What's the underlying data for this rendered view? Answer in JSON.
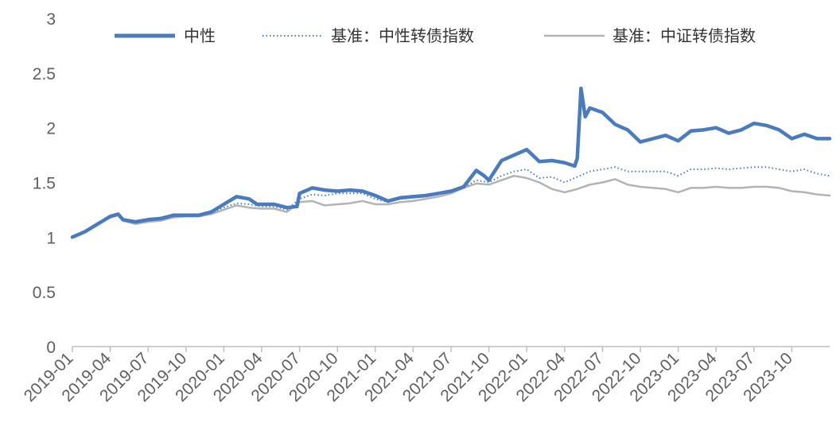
{
  "chart_data": {
    "type": "line",
    "title": "",
    "xlabel": "",
    "ylabel": "",
    "ylim": [
      0,
      3
    ],
    "y_ticks": [
      "0",
      "0.5",
      "1",
      "1.5",
      "2",
      "2.5",
      "3"
    ],
    "x_ticks": [
      "2019-01",
      "2019-04",
      "2019-07",
      "2019-10",
      "2020-01",
      "2020-04",
      "2020-07",
      "2020-10",
      "2021-01",
      "2021-04",
      "2021-07",
      "2021-10",
      "2022-01",
      "2022-04",
      "2022-07",
      "2022-10",
      "2023-01",
      "2023-04",
      "2023-07",
      "2023-10"
    ],
    "x_range": [
      "2019-01",
      "2024-01"
    ],
    "grid": false,
    "legend_position": "top",
    "colors": {
      "axis": "#bfbfbf",
      "text": "#5f5f5f"
    },
    "series": [
      {
        "name": "中性",
        "color": "#4a7bbf",
        "style": "thick-solid",
        "points": [
          [
            "2019-01",
            1.0
          ],
          [
            "2019-02",
            1.05
          ],
          [
            "2019-03",
            1.12
          ],
          [
            "2019-04",
            1.19
          ],
          [
            "2019-04-20",
            1.21
          ],
          [
            "2019-05",
            1.16
          ],
          [
            "2019-06",
            1.14
          ],
          [
            "2019-07",
            1.16
          ],
          [
            "2019-08",
            1.17
          ],
          [
            "2019-09",
            1.2
          ],
          [
            "2019-10",
            1.2
          ],
          [
            "2019-11",
            1.2
          ],
          [
            "2019-12",
            1.23
          ],
          [
            "2020-01",
            1.3
          ],
          [
            "2020-02",
            1.37
          ],
          [
            "2020-03",
            1.35
          ],
          [
            "2020-03-20",
            1.3
          ],
          [
            "2020-04",
            1.3
          ],
          [
            "2020-05",
            1.3
          ],
          [
            "2020-06",
            1.27
          ],
          [
            "2020-06-25",
            1.28
          ],
          [
            "2020-07",
            1.4
          ],
          [
            "2020-08",
            1.45
          ],
          [
            "2020-09",
            1.43
          ],
          [
            "2020-10",
            1.42
          ],
          [
            "2020-11",
            1.43
          ],
          [
            "2020-12",
            1.42
          ],
          [
            "2021-01",
            1.38
          ],
          [
            "2021-02",
            1.33
          ],
          [
            "2021-03",
            1.36
          ],
          [
            "2021-04",
            1.37
          ],
          [
            "2021-05",
            1.38
          ],
          [
            "2021-06",
            1.4
          ],
          [
            "2021-07",
            1.42
          ],
          [
            "2021-08",
            1.46
          ],
          [
            "2021-09",
            1.61
          ],
          [
            "2021-09-20",
            1.56
          ],
          [
            "2021-10",
            1.52
          ],
          [
            "2021-11",
            1.7
          ],
          [
            "2021-12",
            1.75
          ],
          [
            "2022-01",
            1.8
          ],
          [
            "2022-02",
            1.69
          ],
          [
            "2022-03",
            1.7
          ],
          [
            "2022-04",
            1.68
          ],
          [
            "2022-04-25",
            1.65
          ],
          [
            "2022-05",
            1.72
          ],
          [
            "2022-05-10",
            2.36
          ],
          [
            "2022-05-20",
            2.1
          ],
          [
            "2022-06",
            2.18
          ],
          [
            "2022-07",
            2.14
          ],
          [
            "2022-08",
            2.03
          ],
          [
            "2022-09",
            1.98
          ],
          [
            "2022-10",
            1.87
          ],
          [
            "2022-11",
            1.9
          ],
          [
            "2022-12",
            1.93
          ],
          [
            "2023-01",
            1.88
          ],
          [
            "2023-02",
            1.97
          ],
          [
            "2023-03",
            1.98
          ],
          [
            "2023-04",
            2.0
          ],
          [
            "2023-05",
            1.95
          ],
          [
            "2023-06",
            1.98
          ],
          [
            "2023-07",
            2.04
          ],
          [
            "2023-08",
            2.02
          ],
          [
            "2023-09",
            1.98
          ],
          [
            "2023-10",
            1.9
          ],
          [
            "2023-11",
            1.94
          ],
          [
            "2023-12",
            1.9
          ],
          [
            "2024-01",
            1.9
          ]
        ]
      },
      {
        "name": "基准：中性转债指数",
        "color": "#4a7bbf",
        "style": "dotted",
        "points": [
          [
            "2019-01",
            1.0
          ],
          [
            "2019-02",
            1.05
          ],
          [
            "2019-03",
            1.11
          ],
          [
            "2019-04",
            1.18
          ],
          [
            "2019-04-20",
            1.2
          ],
          [
            "2019-05",
            1.15
          ],
          [
            "2019-06",
            1.13
          ],
          [
            "2019-07",
            1.15
          ],
          [
            "2019-08",
            1.16
          ],
          [
            "2019-09",
            1.19
          ],
          [
            "2019-10",
            1.2
          ],
          [
            "2019-11",
            1.2
          ],
          [
            "2019-12",
            1.22
          ],
          [
            "2020-01",
            1.27
          ],
          [
            "2020-02",
            1.31
          ],
          [
            "2020-03",
            1.3
          ],
          [
            "2020-04",
            1.28
          ],
          [
            "2020-05",
            1.28
          ],
          [
            "2020-06",
            1.25
          ],
          [
            "2020-07",
            1.35
          ],
          [
            "2020-08",
            1.39
          ],
          [
            "2020-09",
            1.38
          ],
          [
            "2020-10",
            1.4
          ],
          [
            "2020-11",
            1.4
          ],
          [
            "2020-12",
            1.4
          ],
          [
            "2021-01",
            1.35
          ],
          [
            "2021-02",
            1.32
          ],
          [
            "2021-03",
            1.35
          ],
          [
            "2021-04",
            1.36
          ],
          [
            "2021-05",
            1.37
          ],
          [
            "2021-06",
            1.39
          ],
          [
            "2021-07",
            1.42
          ],
          [
            "2021-08",
            1.45
          ],
          [
            "2021-09",
            1.52
          ],
          [
            "2021-10",
            1.5
          ],
          [
            "2021-11",
            1.56
          ],
          [
            "2021-12",
            1.6
          ],
          [
            "2022-01",
            1.62
          ],
          [
            "2022-02",
            1.54
          ],
          [
            "2022-03",
            1.55
          ],
          [
            "2022-04",
            1.5
          ],
          [
            "2022-05",
            1.55
          ],
          [
            "2022-06",
            1.6
          ],
          [
            "2022-07",
            1.62
          ],
          [
            "2022-08",
            1.64
          ],
          [
            "2022-09",
            1.6
          ],
          [
            "2022-10",
            1.6
          ],
          [
            "2022-11",
            1.6
          ],
          [
            "2022-12",
            1.6
          ],
          [
            "2023-01",
            1.56
          ],
          [
            "2023-02",
            1.62
          ],
          [
            "2023-03",
            1.62
          ],
          [
            "2023-04",
            1.63
          ],
          [
            "2023-05",
            1.62
          ],
          [
            "2023-06",
            1.63
          ],
          [
            "2023-07",
            1.64
          ],
          [
            "2023-08",
            1.64
          ],
          [
            "2023-09",
            1.62
          ],
          [
            "2023-10",
            1.6
          ],
          [
            "2023-11",
            1.62
          ],
          [
            "2023-12",
            1.58
          ],
          [
            "2024-01",
            1.56
          ]
        ]
      },
      {
        "name": "基准：中证转债指数",
        "color": "#b3b3b3",
        "style": "solid",
        "points": [
          [
            "2019-01",
            1.0
          ],
          [
            "2019-02",
            1.05
          ],
          [
            "2019-03",
            1.12
          ],
          [
            "2019-04",
            1.18
          ],
          [
            "2019-04-20",
            1.2
          ],
          [
            "2019-05",
            1.15
          ],
          [
            "2019-06",
            1.12
          ],
          [
            "2019-07",
            1.14
          ],
          [
            "2019-08",
            1.15
          ],
          [
            "2019-09",
            1.18
          ],
          [
            "2019-10",
            1.19
          ],
          [
            "2019-11",
            1.19
          ],
          [
            "2019-12",
            1.21
          ],
          [
            "2020-01",
            1.25
          ],
          [
            "2020-02",
            1.29
          ],
          [
            "2020-03",
            1.27
          ],
          [
            "2020-04",
            1.26
          ],
          [
            "2020-05",
            1.26
          ],
          [
            "2020-06",
            1.23
          ],
          [
            "2020-07",
            1.32
          ],
          [
            "2020-08",
            1.33
          ],
          [
            "2020-09",
            1.29
          ],
          [
            "2020-10",
            1.3
          ],
          [
            "2020-11",
            1.31
          ],
          [
            "2020-12",
            1.33
          ],
          [
            "2021-01",
            1.3
          ],
          [
            "2021-02",
            1.3
          ],
          [
            "2021-03",
            1.32
          ],
          [
            "2021-04",
            1.33
          ],
          [
            "2021-05",
            1.35
          ],
          [
            "2021-06",
            1.37
          ],
          [
            "2021-07",
            1.4
          ],
          [
            "2021-08",
            1.45
          ],
          [
            "2021-09",
            1.49
          ],
          [
            "2021-10",
            1.48
          ],
          [
            "2021-11",
            1.52
          ],
          [
            "2021-12",
            1.56
          ],
          [
            "2022-01",
            1.54
          ],
          [
            "2022-02",
            1.5
          ],
          [
            "2022-03",
            1.44
          ],
          [
            "2022-04",
            1.41
          ],
          [
            "2022-05",
            1.44
          ],
          [
            "2022-06",
            1.48
          ],
          [
            "2022-07",
            1.5
          ],
          [
            "2022-08",
            1.53
          ],
          [
            "2022-09",
            1.48
          ],
          [
            "2022-10",
            1.46
          ],
          [
            "2022-11",
            1.45
          ],
          [
            "2022-12",
            1.44
          ],
          [
            "2023-01",
            1.41
          ],
          [
            "2023-02",
            1.45
          ],
          [
            "2023-03",
            1.45
          ],
          [
            "2023-04",
            1.46
          ],
          [
            "2023-05",
            1.45
          ],
          [
            "2023-06",
            1.45
          ],
          [
            "2023-07",
            1.46
          ],
          [
            "2023-08",
            1.46
          ],
          [
            "2023-09",
            1.45
          ],
          [
            "2023-10",
            1.42
          ],
          [
            "2023-11",
            1.41
          ],
          [
            "2023-12",
            1.39
          ],
          [
            "2024-01",
            1.38
          ]
        ]
      }
    ]
  }
}
